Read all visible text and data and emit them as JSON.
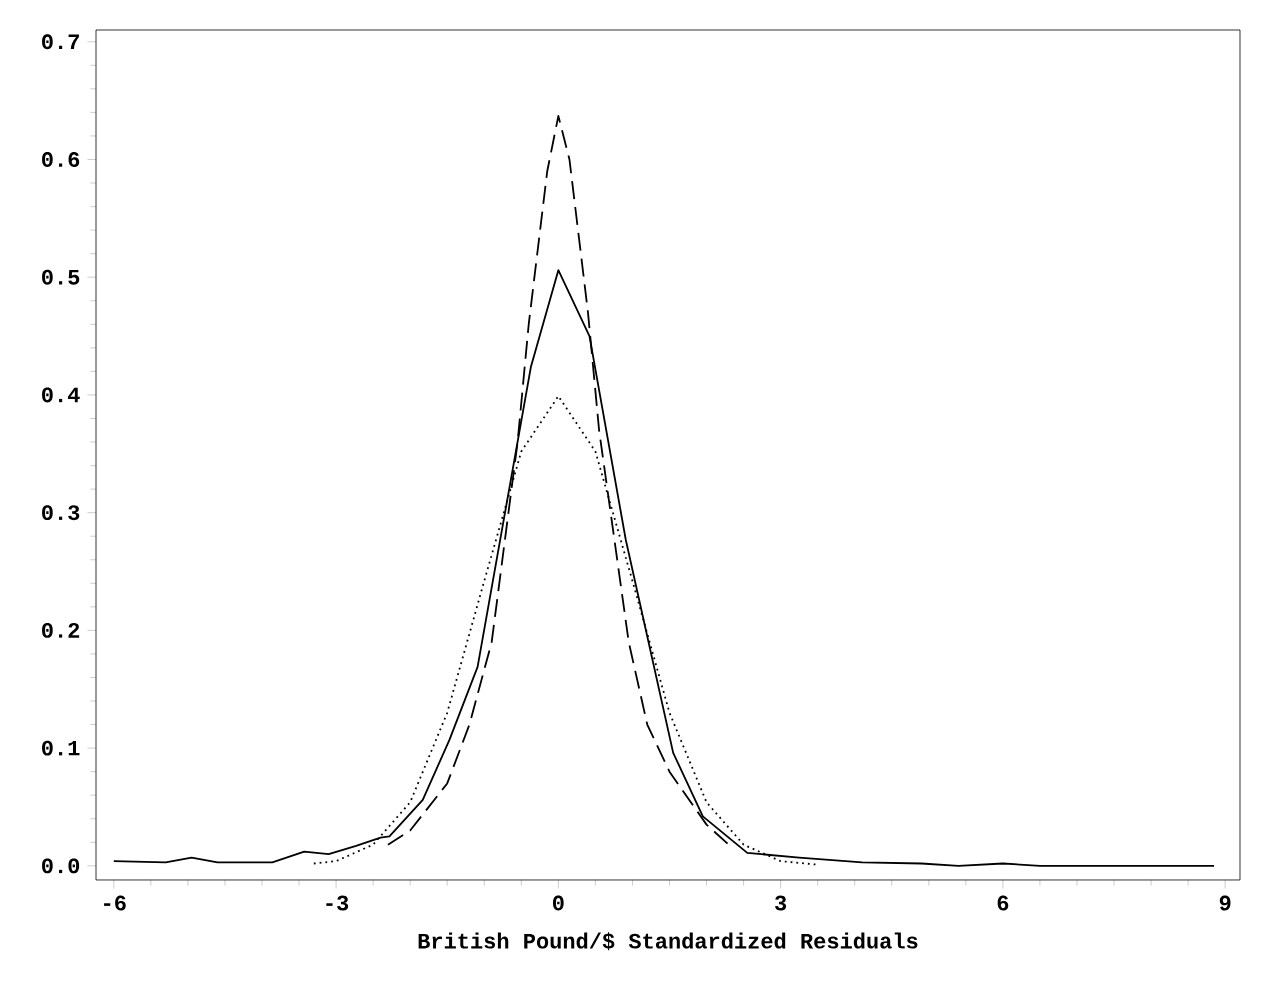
{
  "chart_data": {
    "type": "line",
    "xlabel": "British Pound/$ Standardized Residuals",
    "xlim": [
      -6.24,
      9.2
    ],
    "ylim": [
      -0.012,
      0.71
    ],
    "xticks": [
      -6,
      -3,
      0,
      3,
      6,
      9
    ],
    "yticks": [
      {
        "value": 0,
        "label": "0.0"
      },
      {
        "value": 0.1,
        "label": "0.1"
      },
      {
        "value": 0.2,
        "label": "0.2"
      },
      {
        "value": 0.3,
        "label": "0.3"
      },
      {
        "value": 0.4,
        "label": "0.4"
      },
      {
        "value": 0.5,
        "label": "0.5"
      },
      {
        "value": 0.6,
        "label": "0.6"
      },
      {
        "value": 0.7,
        "label": "0.7"
      }
    ],
    "marker": "none",
    "series": [
      {
        "color": "#000000",
        "line_style": "solid",
        "x": [
          -6,
          -5.3,
          -4.95,
          -4.6,
          -3.86,
          -3.43,
          -3.1,
          -2.73,
          -2.4,
          -2.28,
          -1.83,
          -1.47,
          -1.09,
          -0.37,
          0,
          0.42,
          0.91,
          1.55,
          1.95,
          2.55,
          3.25,
          4.1,
          4.9,
          5.4,
          6.0,
          6.5,
          8.85
        ],
        "values": [
          0.004,
          0.003,
          0.007,
          0.003,
          0.003,
          0.012,
          0.01,
          0.017,
          0.024,
          0.025,
          0.056,
          0.107,
          0.169,
          0.424,
          0.506,
          0.45,
          0.277,
          0.096,
          0.042,
          0.011,
          0.007,
          0.003,
          0.002,
          0,
          0.002,
          0,
          0
        ]
      },
      {
        "color": "#000000",
        "line_style": "dashed",
        "x": [
          -2.3,
          -2,
          -1.5,
          -1.2,
          -0.9,
          -0.55,
          -0.4,
          -0.15,
          0,
          0.15,
          0.4,
          0.55,
          0.95,
          1.2,
          1.5,
          2,
          2.3
        ],
        "values": [
          0.018,
          0.03,
          0.07,
          0.12,
          0.19,
          0.36,
          0.46,
          0.59,
          0.637,
          0.6,
          0.47,
          0.37,
          0.19,
          0.12,
          0.08,
          0.035,
          0.018
        ]
      },
      {
        "color": "#000000",
        "line_style": "dotted",
        "x": [
          -3.3,
          -3,
          -2.5,
          -2,
          -1.5,
          -1,
          -0.5,
          0,
          0.5,
          1,
          1.5,
          2,
          2.5,
          3,
          3.5
        ],
        "values": [
          0.002,
          0.004,
          0.018,
          0.054,
          0.13,
          0.242,
          0.352,
          0.399,
          0.352,
          0.242,
          0.13,
          0.054,
          0.018,
          0.004,
          0.001
        ]
      }
    ]
  }
}
